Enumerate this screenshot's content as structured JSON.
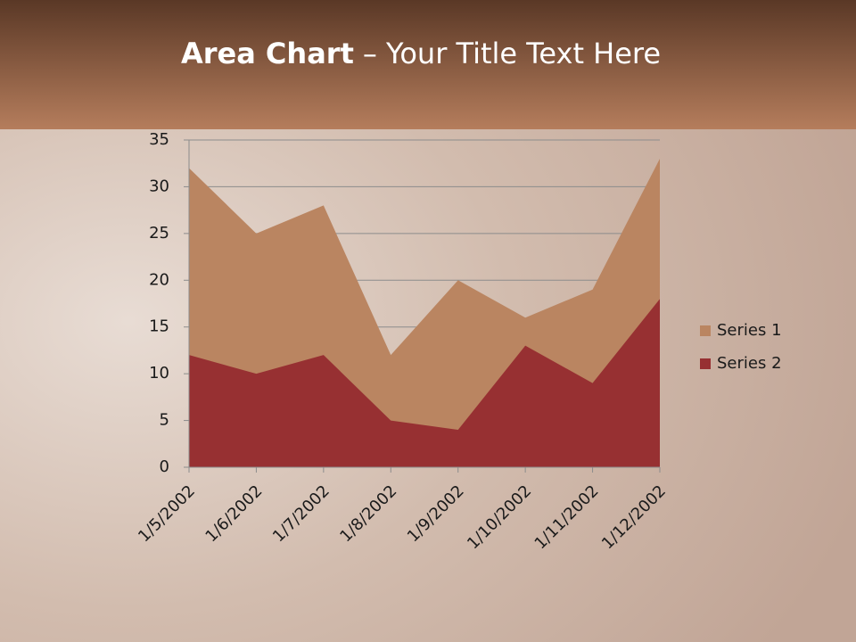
{
  "chart_data": {
    "type": "area",
    "title_bold": "Area Chart",
    "title": "– Your Title Text Here",
    "categories": [
      "1/5/2002",
      "1/6/2002",
      "1/7/2002",
      "1/8/2002",
      "1/9/2002",
      "1/10/2002",
      "1/11/2002",
      "1/12/2002"
    ],
    "series": [
      {
        "name": "Series 1",
        "color": "#ba8561",
        "values": [
          32,
          25,
          28,
          12,
          20,
          16,
          19,
          33
        ]
      },
      {
        "name": "Series 2",
        "color": "#973032",
        "values": [
          12,
          10,
          12,
          5,
          4,
          13,
          9,
          18
        ]
      }
    ],
    "ylim": [
      0,
      35
    ],
    "yticks": [
      0,
      5,
      10,
      15,
      20,
      25,
      30,
      35
    ],
    "grid": true,
    "legend": "right"
  }
}
